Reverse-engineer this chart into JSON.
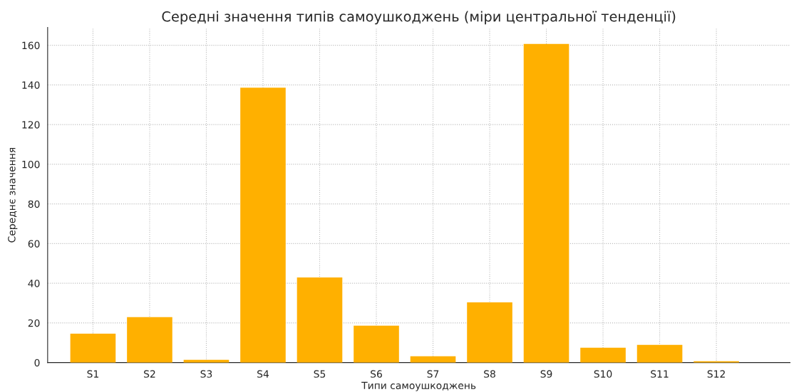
{
  "chart_data": {
    "type": "bar",
    "title": "Середні значення типів самоушкоджень (міри центральної тенденції)",
    "xlabel": "Типи самоушкоджень",
    "ylabel": "Середнє значення",
    "categories": [
      "S1",
      "S2",
      "S3",
      "S4",
      "S5",
      "S6",
      "S7",
      "S8",
      "S9",
      "S10",
      "S11",
      "S12"
    ],
    "values": [
      14.6,
      22.9,
      1.4,
      138.6,
      42.9,
      18.6,
      3.2,
      30.4,
      160.7,
      7.5,
      8.9,
      0.7
    ],
    "color": "#ffb000",
    "ylim": [
      0,
      169
    ],
    "yticks": [
      0,
      20,
      40,
      60,
      80,
      100,
      120,
      140,
      160
    ],
    "grid": true
  }
}
